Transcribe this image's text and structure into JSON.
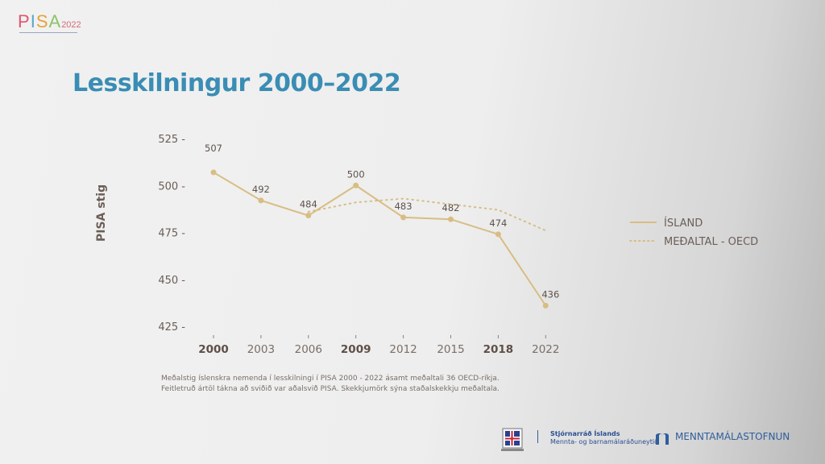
{
  "logo": {
    "brand": "PISA",
    "year": "2022"
  },
  "title": "Lesskilningur 2000–2022",
  "chart_data": {
    "type": "line",
    "title": "Lesskilningur 2000–2022",
    "ylabel": "PISA stig",
    "xlabel": "",
    "categories": [
      "2000",
      "2003",
      "2006",
      "2009",
      "2012",
      "2015",
      "2018",
      "2022"
    ],
    "bold_categories": [
      "2000",
      "2009",
      "2018"
    ],
    "yticks": [
      525,
      500,
      475,
      450,
      425
    ],
    "ylim": [
      425,
      525
    ],
    "grid": false,
    "legend_position": "right",
    "series": [
      {
        "name": "ÍSLAND",
        "style": "solid",
        "color": "#d8bd83",
        "values": [
          507,
          492,
          484,
          500,
          483,
          482,
          474,
          436
        ],
        "labels": [
          "507",
          "492",
          "484",
          "500",
          "483",
          "482",
          "474",
          "436"
        ]
      },
      {
        "name": "MEÐALTAL - OECD",
        "style": "dotted",
        "color": "#d8bd83",
        "values": [
          null,
          null,
          486,
          491,
          493,
          490,
          487,
          476
        ]
      }
    ]
  },
  "note": [
    "Meðalstig íslenskra nemenda í lesskilningi í PISA 2000 - 2022 ásamt meðaltali 36 OECD-ríkja.",
    "Feitletruð ártöl tákna að sviðið var aðalsvið PISA. Skekkjumörk sýna staðalskekkju meðaltala."
  ],
  "footer": {
    "gov_line1": "Stjórnarráð Íslands",
    "gov_line2": "Mennta- og barnamálaráðuneytið",
    "agency": "MENNTAMÁLASTOFNUN"
  }
}
